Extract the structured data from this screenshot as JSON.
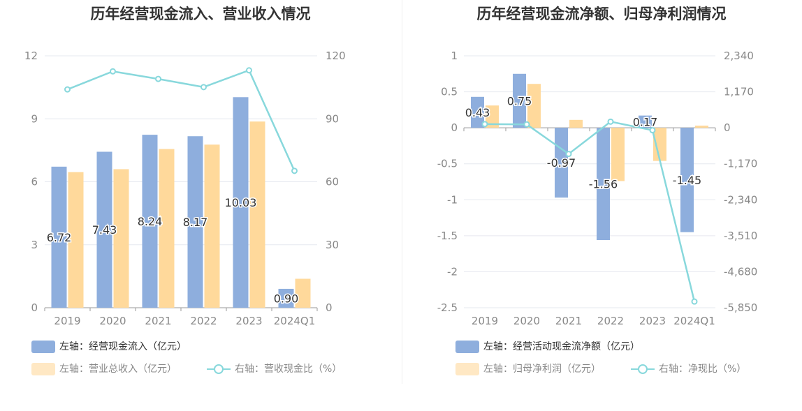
{
  "colors": {
    "bar1": "#8eaedd",
    "bar2": "#ffd99b",
    "line": "#88d8dc",
    "grid": "#e6e8ef",
    "axis_text": "#888888",
    "label": "#333333"
  },
  "left": {
    "title": "历年经营现金流入、营业收入情况",
    "legend": [
      {
        "label": "左轴：经营现金流入（亿元）",
        "kind": "bar",
        "color": "#8eaedd"
      },
      {
        "label": "左轴：营业总收入（亿元）",
        "kind": "bar",
        "color": "#ffd99b"
      },
      {
        "label": "右轴：营收现金比（%）",
        "kind": "line",
        "color": "#88d8dc"
      }
    ]
  },
  "right": {
    "title": "历年经营现金流净额、归母净利润情况",
    "legend": [
      {
        "label": "左轴：经营活动现金流净额（亿元）",
        "kind": "bar",
        "color": "#8eaedd"
      },
      {
        "label": "左轴：归母净利润（亿元）",
        "kind": "bar",
        "color": "#ffd99b"
      },
      {
        "label": "右轴：净现比（%）",
        "kind": "line",
        "color": "#88d8dc"
      }
    ]
  },
  "chart_data": [
    {
      "type": "bar",
      "title": "历年经营现金流入、营业收入情况",
      "categories": [
        "2019",
        "2020",
        "2021",
        "2022",
        "2023",
        "2024Q1"
      ],
      "y_left": {
        "ticks": [
          "0",
          "3",
          "6",
          "9",
          "12"
        ],
        "lim": [
          0,
          12
        ]
      },
      "y_right": {
        "ticks": [
          "0",
          "30",
          "60",
          "90",
          "120"
        ],
        "lim": [
          0,
          120
        ]
      },
      "series": [
        {
          "name": "左轴：经营现金流入（亿元）",
          "axis": "left",
          "kind": "bar",
          "values": [
            6.72,
            7.43,
            8.24,
            8.17,
            10.03,
            0.9
          ],
          "labels": [
            "6.72",
            "7.43",
            "8.24",
            "8.17",
            "10.03",
            "0.90"
          ]
        },
        {
          "name": "左轴：营业总收入（亿元）",
          "axis": "left",
          "kind": "bar",
          "values": [
            6.46,
            6.6,
            7.56,
            7.77,
            8.87,
            1.38
          ]
        },
        {
          "name": "右轴：营收现金比（%）",
          "axis": "right",
          "kind": "line",
          "values": [
            104,
            112.6,
            109,
            105.1,
            113.1,
            65.2
          ]
        }
      ],
      "grid": true,
      "legend_position": "bottom"
    },
    {
      "type": "bar",
      "title": "历年经营现金流净额、归母净利润情况",
      "categories": [
        "2019",
        "2020",
        "2021",
        "2022",
        "2023",
        "2024Q1"
      ],
      "y_left": {
        "ticks": [
          "1",
          "0.5",
          "0",
          "-0.5",
          "-1",
          "-1.5",
          "-2",
          "-2.5"
        ],
        "lim": [
          -2.5,
          1
        ]
      },
      "y_right": {
        "ticks": [
          "2,340",
          "1,170",
          "0",
          "-1,170",
          "-2,340",
          "-3,510",
          "-4,680",
          "-5,850"
        ],
        "lim": [
          -5850,
          2340
        ]
      },
      "series": [
        {
          "name": "左轴：经营活动现金流净额（亿元）",
          "axis": "left",
          "kind": "bar",
          "values": [
            0.43,
            0.75,
            -0.97,
            -1.56,
            0.17,
            -1.45
          ],
          "labels": [
            "0.43",
            "0.75",
            "-0.97",
            "-1.56",
            "0.17",
            "-1.45"
          ]
        },
        {
          "name": "左轴：归母净利润（亿元）",
          "axis": "left",
          "kind": "bar",
          "values": [
            0.31,
            0.61,
            0.11,
            -0.74,
            -0.46,
            0.03
          ]
        },
        {
          "name": "右轴：净现比（%）",
          "axis": "right",
          "kind": "line",
          "values": [
            120,
            110,
            -850,
            200,
            -80,
            -5650
          ]
        }
      ],
      "grid": true,
      "legend_position": "bottom"
    }
  ]
}
